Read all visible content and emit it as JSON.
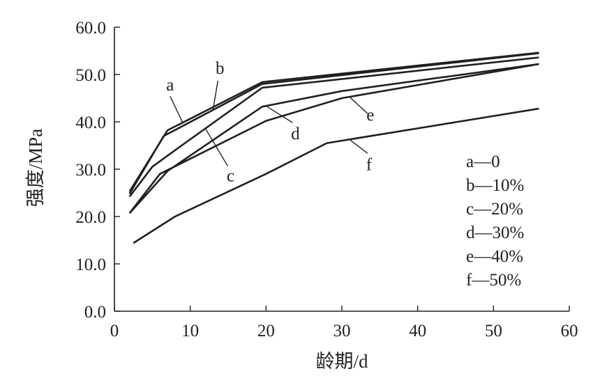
{
  "chart_data": {
    "type": "line",
    "xlabel": "龄期/d",
    "ylabel": "强度/MPa",
    "xlim": [
      0,
      60
    ],
    "ylim": [
      0,
      60
    ],
    "x_ticks": [
      "0",
      "10",
      "20",
      "30",
      "40",
      "50",
      "60"
    ],
    "y_ticks": [
      "0.0",
      "10.0",
      "20.0",
      "30.0",
      "40.0",
      "50.0",
      "60.0"
    ],
    "grid": false,
    "legend_position": "right",
    "legend": [
      {
        "key": "a",
        "text": "a—0"
      },
      {
        "key": "b",
        "text": "b—10%"
      },
      {
        "key": "c",
        "text": "c—20%"
      },
      {
        "key": "d",
        "text": "d—30%"
      },
      {
        "key": "e",
        "text": "e—40%"
      },
      {
        "key": "f",
        "text": "f—50%"
      }
    ],
    "series": [
      {
        "name": "a",
        "x": [
          2,
          7,
          19.5,
          56
        ],
        "y": [
          25.3,
          38.2,
          48.4,
          54.6
        ]
      },
      {
        "name": "b",
        "x": [
          2,
          6.5,
          19.5,
          56
        ],
        "y": [
          24.8,
          37.0,
          48.0,
          54.5
        ]
      },
      {
        "name": "c",
        "x": [
          2,
          5,
          8,
          19.5,
          56
        ],
        "y": [
          24.2,
          30.5,
          34.0,
          47.2,
          53.6
        ]
      },
      {
        "name": "d",
        "x": [
          2,
          7,
          19.5,
          30,
          56
        ],
        "y": [
          20.7,
          29.6,
          43.2,
          46.5,
          52.2
        ]
      },
      {
        "name": "e",
        "x": [
          2,
          6,
          20,
          30,
          56
        ],
        "y": [
          20.7,
          29.0,
          40.2,
          45.0,
          52.2
        ]
      },
      {
        "name": "f",
        "x": [
          2.5,
          8,
          20,
          28,
          56
        ],
        "y": [
          14.4,
          20.0,
          29.0,
          35.5,
          42.8
        ]
      }
    ],
    "annotations": [
      {
        "label": "a",
        "series": "a",
        "at_x": 9
      },
      {
        "label": "b",
        "series": "b",
        "at_x": 13
      },
      {
        "label": "c",
        "series": "c",
        "at_x": 12
      },
      {
        "label": "d",
        "series": "d",
        "at_x": 20
      },
      {
        "label": "e",
        "series": "e",
        "at_x": 31
      },
      {
        "label": "f",
        "series": "f",
        "at_x": 31
      }
    ]
  }
}
